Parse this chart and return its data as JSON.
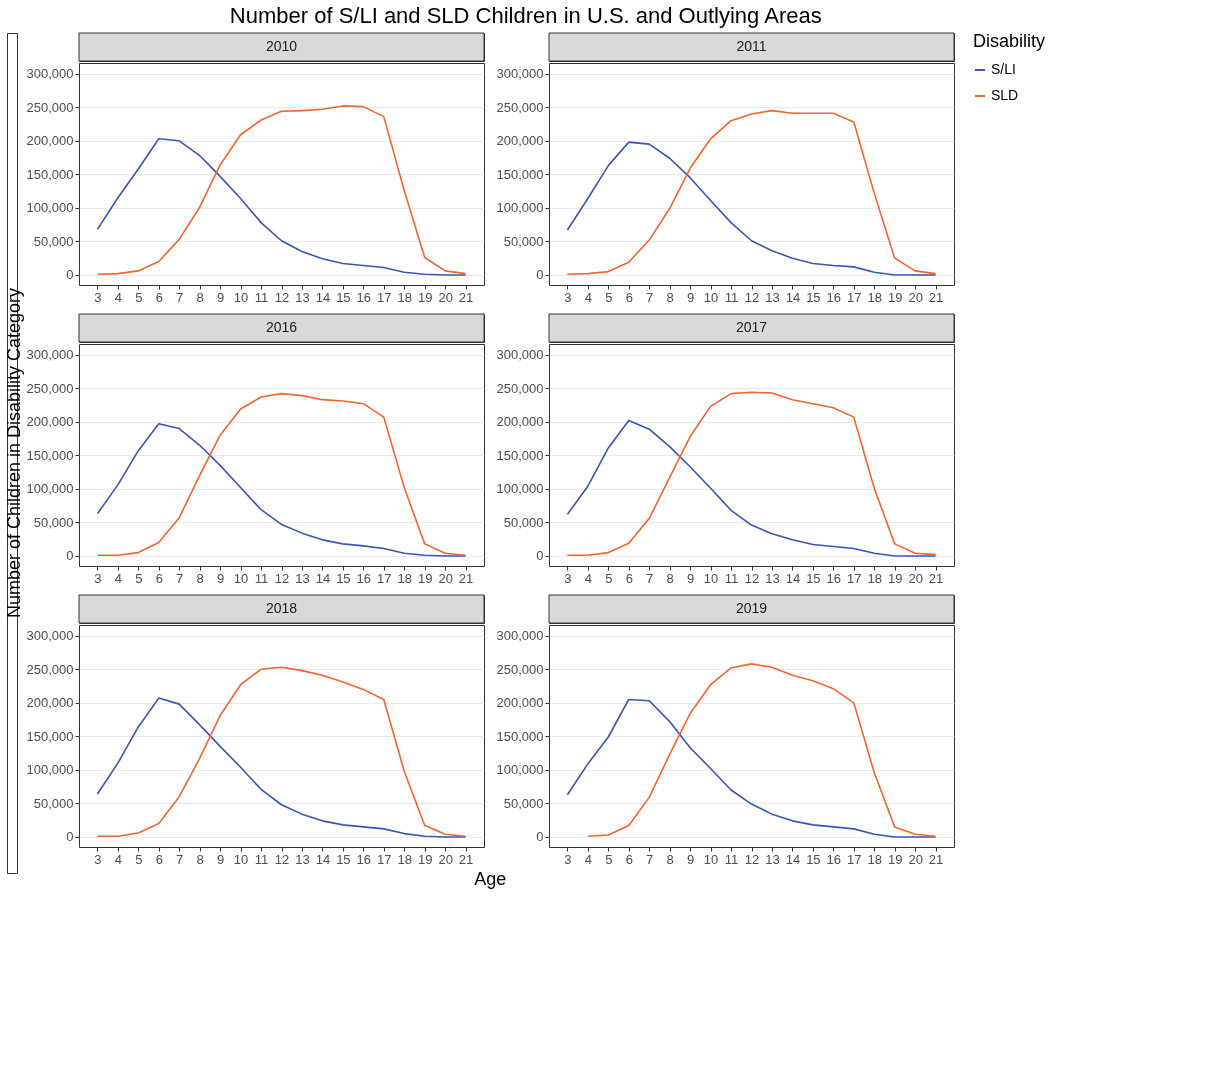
{
  "chart_data": [
    {
      "type": "line",
      "title": "2010",
      "annotations": [
        "Number of S/LI and SLD Children in U.S. and Outlying Areas"
      ],
      "legend_title": "Disability",
      "legend": "right",
      "grid": "y",
      "x": [
        3,
        4,
        5,
        6,
        7,
        8,
        9,
        10,
        11,
        12,
        13,
        14,
        15,
        16,
        17,
        18,
        19,
        20,
        21
      ],
      "xlim": [
        2.1,
        21.9
      ],
      "xticks": [
        3,
        4,
        5,
        6,
        7,
        8,
        9,
        10,
        11,
        12,
        13,
        14,
        15,
        16,
        17,
        18,
        19,
        20,
        21
      ],
      "ylim": [
        -15000,
        316000
      ],
      "yticks": [
        0,
        {
          "value": 50000,
          "label": "50,000"
        },
        {
          "value": 100000,
          "label": "100,000"
        },
        {
          "value": 150000,
          "label": "150,000"
        },
        {
          "value": 200000,
          "label": "200,000"
        },
        {
          "value": 250000,
          "label": "250,000"
        },
        {
          "value": 300000,
          "label": "300,000"
        }
      ],
      "series": [
        {
          "name": "S/LI",
          "color": "#3a55b4",
          "values": [
            68000,
            115000,
            158000,
            203000,
            200000,
            178000,
            147000,
            114000,
            78000,
            51000,
            35000,
            24000,
            17000,
            14000,
            11000,
            4000,
            1000,
            0,
            0
          ]
        },
        {
          "name": "SLD",
          "color": "#f06532",
          "values": [
            1000,
            2000,
            6000,
            20000,
            53000,
            101000,
            164000,
            209000,
            231000,
            244000,
            245000,
            247000,
            252000,
            251000,
            236000,
            126000,
            26000,
            6000,
            2000
          ]
        }
      ]
    },
    {
      "type": "line",
      "title": "2011",
      "grid": "y",
      "x": [
        3,
        4,
        5,
        6,
        7,
        8,
        9,
        10,
        11,
        12,
        13,
        14,
        15,
        16,
        17,
        18,
        19,
        20,
        21
      ],
      "xlim": [
        2.1,
        21.9
      ],
      "xticks": [
        3,
        4,
        5,
        6,
        7,
        8,
        9,
        10,
        11,
        12,
        13,
        14,
        15,
        16,
        17,
        18,
        19,
        20,
        21
      ],
      "ylim": [
        -15000,
        316000
      ],
      "yticks": [
        0,
        {
          "value": 50000,
          "label": "50,000"
        },
        {
          "value": 100000,
          "label": "100,000"
        },
        {
          "value": 150000,
          "label": "150,000"
        },
        {
          "value": 200000,
          "label": "200,000"
        },
        {
          "value": 250000,
          "label": "250,000"
        },
        {
          "value": 300000,
          "label": "300,000"
        }
      ],
      "series": [
        {
          "name": "S/LI",
          "color": "#3a55b4",
          "values": [
            67000,
            114000,
            163000,
            198000,
            195000,
            174000,
            145000,
            111000,
            78000,
            51000,
            36000,
            25000,
            17000,
            14000,
            12000,
            4000,
            0,
            0,
            0
          ]
        },
        {
          "name": "SLD",
          "color": "#f06532",
          "values": [
            1000,
            2000,
            5000,
            19000,
            52000,
            99000,
            159000,
            203000,
            230000,
            240000,
            245000,
            241000,
            241000,
            241000,
            228000,
            122000,
            25000,
            6000,
            2000
          ]
        }
      ]
    },
    {
      "type": "line",
      "title": "2016",
      "ylabel": "Number of Children in Disability Category",
      "grid": "y",
      "x": [
        3,
        4,
        5,
        6,
        7,
        8,
        9,
        10,
        11,
        12,
        13,
        14,
        15,
        16,
        17,
        18,
        19,
        20,
        21
      ],
      "xlim": [
        2.1,
        21.9
      ],
      "xticks": [
        3,
        4,
        5,
        6,
        7,
        8,
        9,
        10,
        11,
        12,
        13,
        14,
        15,
        16,
        17,
        18,
        19,
        20,
        21
      ],
      "ylim": [
        -15000,
        316000
      ],
      "yticks": [
        0,
        {
          "value": 50000,
          "label": "50,000"
        },
        {
          "value": 100000,
          "label": "100,000"
        },
        {
          "value": 150000,
          "label": "150,000"
        },
        {
          "value": 200000,
          "label": "200,000"
        },
        {
          "value": 250000,
          "label": "250,000"
        },
        {
          "value": 300000,
          "label": "300,000"
        }
      ],
      "series": [
        {
          "name": "S/LI",
          "color": "#3a55b4",
          "values": [
            63000,
            106000,
            157000,
            197000,
            190000,
            165000,
            135000,
            102000,
            69000,
            47000,
            34000,
            24000,
            18000,
            15000,
            11000,
            4000,
            1000,
            0,
            0
          ]
        },
        {
          "name": "SLD",
          "color": "#f06532",
          "values": [
            1000,
            1000,
            5000,
            20000,
            57000,
            120000,
            180000,
            219000,
            237000,
            242000,
            239000,
            233000,
            231000,
            227000,
            207000,
            102000,
            18000,
            4000,
            1000
          ]
        }
      ]
    },
    {
      "type": "line",
      "title": "2017",
      "grid": "y",
      "x": [
        3,
        4,
        5,
        6,
        7,
        8,
        9,
        10,
        11,
        12,
        13,
        14,
        15,
        16,
        17,
        18,
        19,
        20,
        21
      ],
      "xlim": [
        2.1,
        21.9
      ],
      "xticks": [
        3,
        4,
        5,
        6,
        7,
        8,
        9,
        10,
        11,
        12,
        13,
        14,
        15,
        16,
        17,
        18,
        19,
        20,
        21
      ],
      "ylim": [
        -15000,
        316000
      ],
      "yticks": [
        0,
        {
          "value": 50000,
          "label": "50,000"
        },
        {
          "value": 100000,
          "label": "100,000"
        },
        {
          "value": 150000,
          "label": "150,000"
        },
        {
          "value": 200000,
          "label": "200,000"
        },
        {
          "value": 250000,
          "label": "250,000"
        },
        {
          "value": 300000,
          "label": "300,000"
        }
      ],
      "series": [
        {
          "name": "S/LI",
          "color": "#3a55b4",
          "values": [
            62000,
            104000,
            161000,
            202000,
            189000,
            163000,
            133000,
            101000,
            68000,
            46000,
            33000,
            24000,
            17000,
            14000,
            11000,
            4000,
            0,
            0,
            0
          ]
        },
        {
          "name": "SLD",
          "color": "#f06532",
          "values": [
            1000,
            1000,
            5000,
            19000,
            56000,
            117000,
            178000,
            223000,
            242000,
            244000,
            243000,
            233000,
            227000,
            221000,
            207000,
            101000,
            18000,
            4000,
            2000
          ]
        }
      ]
    },
    {
      "type": "line",
      "title": "2018",
      "xlabel": "Age",
      "grid": "y",
      "x": [
        3,
        4,
        5,
        6,
        7,
        8,
        9,
        10,
        11,
        12,
        13,
        14,
        15,
        16,
        17,
        18,
        19,
        20,
        21
      ],
      "xlim": [
        2.1,
        21.9
      ],
      "xticks": [
        3,
        4,
        5,
        6,
        7,
        8,
        9,
        10,
        11,
        12,
        13,
        14,
        15,
        16,
        17,
        18,
        19,
        20,
        21
      ],
      "ylim": [
        -15000,
        316000
      ],
      "yticks": [
        0,
        {
          "value": 50000,
          "label": "50,000"
        },
        {
          "value": 100000,
          "label": "100,000"
        },
        {
          "value": 150000,
          "label": "150,000"
        },
        {
          "value": 200000,
          "label": "200,000"
        },
        {
          "value": 250000,
          "label": "250,000"
        },
        {
          "value": 300000,
          "label": "300,000"
        }
      ],
      "series": [
        {
          "name": "S/LI",
          "color": "#3a55b4",
          "values": [
            64000,
            110000,
            164000,
            207000,
            198000,
            167000,
            135000,
            104000,
            71000,
            48000,
            34000,
            24000,
            18000,
            15000,
            12000,
            5000,
            1000,
            0,
            0
          ]
        },
        {
          "name": "SLD",
          "color": "#f06532",
          "values": [
            1000,
            1000,
            6000,
            20000,
            60000,
            117000,
            181000,
            227000,
            250000,
            253000,
            248000,
            241000,
            231000,
            220000,
            205000,
            98000,
            17000,
            4000,
            1000
          ]
        }
      ]
    },
    {
      "type": "line",
      "title": "2019",
      "grid": "y",
      "x": [
        3,
        4,
        5,
        6,
        7,
        8,
        9,
        10,
        11,
        12,
        13,
        14,
        15,
        16,
        17,
        18,
        19,
        20,
        21
      ],
      "xlim": [
        2.1,
        21.9
      ],
      "xticks": [
        3,
        4,
        5,
        6,
        7,
        8,
        9,
        10,
        11,
        12,
        13,
        14,
        15,
        16,
        17,
        18,
        19,
        20,
        21
      ],
      "ylim": [
        -15000,
        316000
      ],
      "yticks": [
        0,
        {
          "value": 50000,
          "label": "50,000"
        },
        {
          "value": 100000,
          "label": "100,000"
        },
        {
          "value": 150000,
          "label": "150,000"
        },
        {
          "value": 200000,
          "label": "200,000"
        },
        {
          "value": 250000,
          "label": "250,000"
        },
        {
          "value": 300000,
          "label": "300,000"
        }
      ],
      "series": [
        {
          "name": "S/LI",
          "color": "#3a55b4",
          "values": [
            63000,
            109000,
            149000,
            205000,
            203000,
            172000,
            133000,
            102000,
            70000,
            49000,
            34000,
            24000,
            18000,
            15000,
            12000,
            4000,
            0,
            0,
            0
          ]
        },
        {
          "name": "SLD",
          "color": "#f06532",
          "values": [
            null,
            1000,
            3000,
            17000,
            59000,
            123000,
            184000,
            227000,
            252000,
            258000,
            253000,
            241000,
            233000,
            221000,
            200000,
            96000,
            15000,
            4000,
            1000
          ]
        }
      ]
    }
  ]
}
